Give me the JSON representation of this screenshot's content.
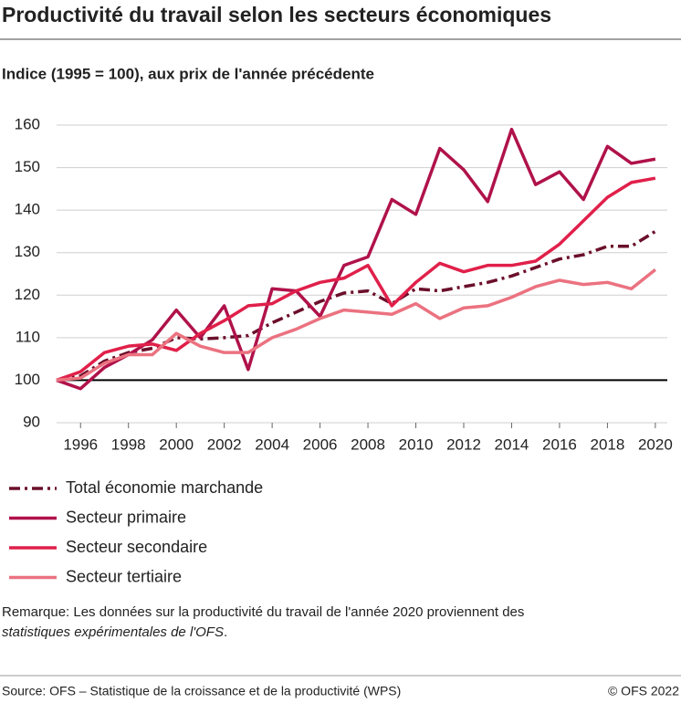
{
  "chart_data": {
    "type": "line",
    "title": "Productivité du travail selon les secteurs économiques",
    "subtitle": "Indice (1995 = 100), aux prix de l'année précédente",
    "x": [
      1995,
      1996,
      1997,
      1998,
      1999,
      2000,
      2001,
      2002,
      2003,
      2004,
      2005,
      2006,
      2007,
      2008,
      2009,
      2010,
      2011,
      2012,
      2013,
      2014,
      2015,
      2016,
      2017,
      2018,
      2019,
      2020
    ],
    "xlim": [
      1995,
      2020.5
    ],
    "xticks": [
      1996,
      1998,
      2000,
      2002,
      2004,
      2006,
      2008,
      2010,
      2012,
      2014,
      2016,
      2018,
      2020
    ],
    "ylim": [
      90,
      160
    ],
    "yticks": [
      90,
      100,
      110,
      120,
      130,
      140,
      150,
      160
    ],
    "grid": true,
    "reference_line": 100,
    "series": [
      {
        "name": "Total économie marchande",
        "color": "#6b0f2a",
        "dash": true,
        "values": [
          100,
          101,
          104.5,
          106.5,
          107.5,
          110,
          109.7,
          110,
          110.5,
          113.5,
          116,
          118.5,
          120.5,
          121,
          118,
          121.5,
          121,
          122,
          123,
          124.5,
          126.5,
          128.5,
          129.5,
          131.5,
          131.5,
          135
        ]
      },
      {
        "name": "Secteur primaire",
        "color": "#b0124a",
        "values": [
          100,
          98,
          103,
          106,
          109.5,
          116.5,
          110,
          117.5,
          102.5,
          121.5,
          121,
          115,
          127,
          129,
          142.5,
          139,
          154.5,
          149.5,
          142,
          159,
          146,
          149,
          142.5,
          155,
          151,
          152
        ]
      },
      {
        "name": "Secteur secondaire",
        "color": "#e0204a",
        "values": [
          100,
          102,
          106.5,
          108,
          108.5,
          107,
          111,
          114,
          117.5,
          118,
          121,
          123,
          124,
          127,
          117.5,
          123,
          127.5,
          125.5,
          127,
          127,
          128,
          132,
          137.5,
          143,
          146.5,
          147.5
        ]
      },
      {
        "name": "Secteur tertiaire",
        "color": "#eb7280",
        "values": [
          100,
          100.5,
          104,
          106,
          106,
          111,
          108,
          106.5,
          106.5,
          110,
          112,
          114.5,
          116.5,
          116,
          115.5,
          118,
          114.5,
          117,
          117.5,
          119.5,
          122,
          123.5,
          122.5,
          123,
          121.5,
          126
        ]
      }
    ],
    "note_text": "Remarque: Les données sur la productivité du travail de l'année 2020 proviennent des",
    "note_emphasis": "statistiques expérimentales de l'OFS",
    "note_end": ".",
    "source": "Source: OFS – Statistique de la croissance et de la productivité (WPS)",
    "copyright": "© OFS 2022"
  }
}
